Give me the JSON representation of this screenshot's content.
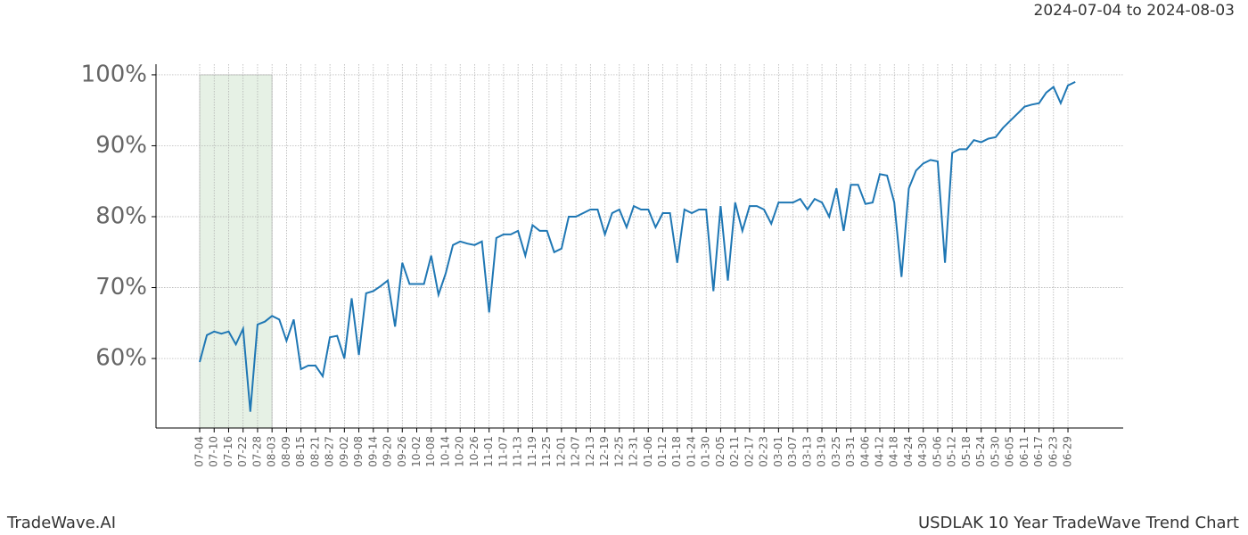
{
  "chart_data": {
    "type": "line",
    "title": "2024-07-04 to 2024-08-03",
    "footer_left": "TradeWave.AI",
    "footer_right": "USDLAK 10 Year TradeWave Trend Chart",
    "categories": [
      "07-04",
      null,
      "07-10",
      null,
      "07-16",
      null,
      "07-22",
      null,
      "07-28",
      null,
      "08-03",
      null,
      "08-09",
      null,
      "08-15",
      null,
      "08-21",
      null,
      "08-27",
      null,
      "09-02",
      null,
      "09-08",
      null,
      "09-14",
      null,
      "09-20",
      null,
      "09-26",
      null,
      "10-02",
      null,
      "10-08",
      null,
      "10-14",
      null,
      "10-20",
      null,
      "10-26",
      null,
      "11-01",
      null,
      "11-07",
      null,
      "11-13",
      null,
      "11-19",
      null,
      "11-25",
      null,
      "12-01",
      null,
      "12-07",
      null,
      "12-13",
      null,
      "12-19",
      null,
      "12-25",
      null,
      "12-31",
      null,
      "01-06",
      null,
      "01-12",
      null,
      "01-18",
      null,
      "01-24",
      null,
      "01-30",
      null,
      "02-05",
      null,
      "02-11",
      null,
      "02-17",
      null,
      "02-23",
      null,
      "03-01",
      null,
      "03-07",
      null,
      "03-13",
      null,
      "03-19",
      null,
      "03-25",
      null,
      "03-31",
      null,
      "04-06",
      null,
      "04-12",
      null,
      "04-18",
      null,
      "04-24",
      null,
      "04-30",
      null,
      "05-06",
      null,
      "05-12",
      null,
      "05-18",
      null,
      "05-24",
      null,
      "05-30",
      null,
      "06-05",
      null,
      "06-11",
      null,
      "06-17",
      null,
      "06-23",
      null,
      "06-29",
      null
    ],
    "series": [
      {
        "name": "USDLAK",
        "color": "#1f77b4",
        "values": [
          59.5,
          63.3,
          63.8,
          63.5,
          63.8,
          62,
          64.2,
          52.5,
          64.8,
          65.2,
          66,
          65.5,
          62.5,
          65.5,
          58.5,
          59,
          59,
          57.5,
          63,
          63.2,
          60,
          68.5,
          60.5,
          69.2,
          69.5,
          70.2,
          71,
          64.5,
          73.5,
          70.5,
          70.5,
          70.5,
          74.5,
          69,
          72,
          76,
          76.5,
          76.2,
          76,
          76.5,
          66.5,
          77,
          77.5,
          77.5,
          78,
          74.5,
          78.8,
          78,
          78,
          75,
          75.5,
          80,
          80,
          80.5,
          81,
          81,
          77.5,
          80.5,
          81,
          78.5,
          81.5,
          81,
          81,
          78.5,
          80.5,
          80.5,
          73.5,
          81,
          80.5,
          81,
          81,
          69.5,
          81.5,
          71,
          82,
          78,
          81.5,
          81.5,
          81,
          79,
          82,
          82,
          82,
          82.5,
          81,
          82.5,
          82,
          80,
          84,
          78,
          84.5,
          84.5,
          81.8,
          82,
          86,
          85.8,
          82,
          71.5,
          84,
          86.5,
          87.5,
          88,
          87.8,
          73.5,
          89,
          89.5,
          89.5,
          90.8,
          90.5,
          91,
          91.2,
          92.5,
          93.5,
          94.5,
          95.5,
          95.8,
          96,
          97.5,
          98.3,
          96,
          98.5,
          99
        ]
      }
    ],
    "highlight": [
      "07-04",
      "08-03"
    ],
    "highlight_color": "#d5e8d4",
    "ylim": [
      50.2,
      101.5
    ],
    "yticks": [
      {
        "value": 60,
        "label": "60%"
      },
      {
        "value": 70,
        "label": "70%"
      },
      {
        "value": 80,
        "label": "80%"
      },
      {
        "value": 90,
        "label": "90%"
      },
      {
        "value": 100,
        "label": "100%"
      }
    ],
    "grid": true
  }
}
